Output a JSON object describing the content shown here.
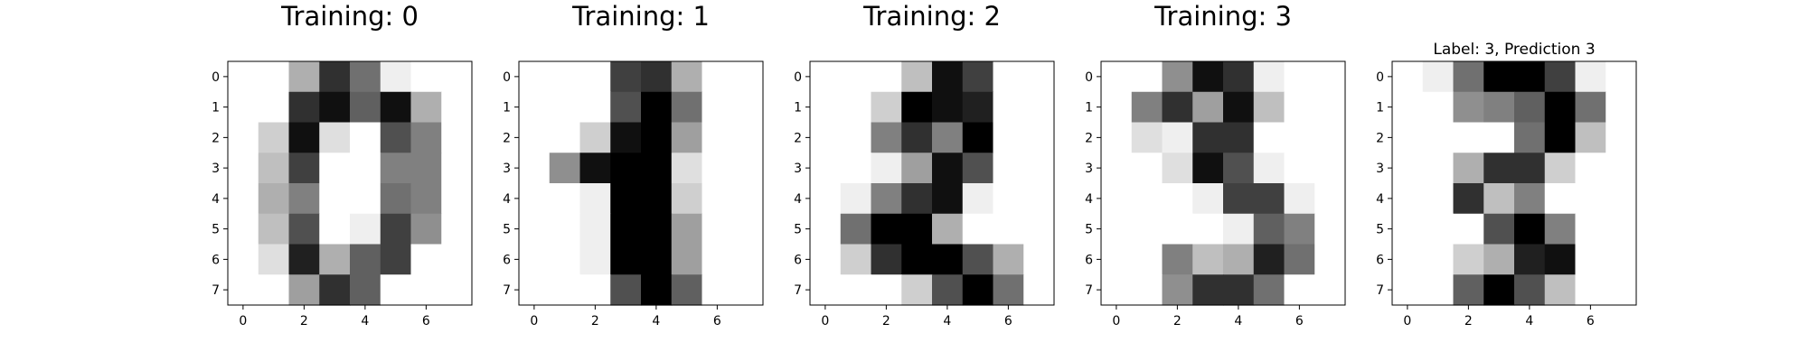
{
  "chart_data": [
    {
      "type": "heatmap",
      "title": "Training: 0",
      "colormap": "gray_r",
      "vmin": 0,
      "vmax": 16,
      "xticks": [
        "0",
        "2",
        "4",
        "6"
      ],
      "yticks": [
        "0",
        "1",
        "2",
        "3",
        "4",
        "5",
        "6",
        "7"
      ],
      "values": [
        [
          0,
          0,
          5,
          13,
          9,
          1,
          0,
          0
        ],
        [
          0,
          0,
          13,
          15,
          10,
          15,
          5,
          0
        ],
        [
          0,
          3,
          15,
          2,
          0,
          11,
          8,
          0
        ],
        [
          0,
          4,
          12,
          0,
          0,
          8,
          8,
          0
        ],
        [
          0,
          5,
          8,
          0,
          0,
          9,
          8,
          0
        ],
        [
          0,
          4,
          11,
          0,
          1,
          12,
          7,
          0
        ],
        [
          0,
          2,
          14,
          5,
          10,
          12,
          0,
          0
        ],
        [
          0,
          0,
          6,
          13,
          10,
          0,
          0,
          0
        ]
      ]
    },
    {
      "type": "heatmap",
      "title": "Training: 1",
      "colormap": "gray_r",
      "vmin": 0,
      "vmax": 16,
      "xticks": [
        "0",
        "2",
        "4",
        "6"
      ],
      "yticks": [
        "0",
        "1",
        "2",
        "3",
        "4",
        "5",
        "6",
        "7"
      ],
      "values": [
        [
          0,
          0,
          0,
          12,
          13,
          5,
          0,
          0
        ],
        [
          0,
          0,
          0,
          11,
          16,
          9,
          0,
          0
        ],
        [
          0,
          0,
          3,
          15,
          16,
          6,
          0,
          0
        ],
        [
          0,
          7,
          15,
          16,
          16,
          2,
          0,
          0
        ],
        [
          0,
          0,
          1,
          16,
          16,
          3,
          0,
          0
        ],
        [
          0,
          0,
          1,
          16,
          16,
          6,
          0,
          0
        ],
        [
          0,
          0,
          1,
          16,
          16,
          6,
          0,
          0
        ],
        [
          0,
          0,
          0,
          11,
          16,
          10,
          0,
          0
        ]
      ]
    },
    {
      "type": "heatmap",
      "title": "Training: 2",
      "colormap": "gray_r",
      "vmin": 0,
      "vmax": 16,
      "xticks": [
        "0",
        "2",
        "4",
        "6"
      ],
      "yticks": [
        "0",
        "1",
        "2",
        "3",
        "4",
        "5",
        "6",
        "7"
      ],
      "values": [
        [
          0,
          0,
          0,
          4,
          15,
          12,
          0,
          0
        ],
        [
          0,
          0,
          3,
          16,
          15,
          14,
          0,
          0
        ],
        [
          0,
          0,
          8,
          13,
          8,
          16,
          0,
          0
        ],
        [
          0,
          0,
          1,
          6,
          15,
          11,
          0,
          0
        ],
        [
          0,
          1,
          8,
          13,
          15,
          1,
          0,
          0
        ],
        [
          0,
          9,
          16,
          16,
          5,
          0,
          0,
          0
        ],
        [
          0,
          3,
          13,
          16,
          16,
          11,
          5,
          0
        ],
        [
          0,
          0,
          0,
          3,
          11,
          16,
          9,
          0
        ]
      ]
    },
    {
      "type": "heatmap",
      "title": "Training: 3",
      "colormap": "gray_r",
      "vmin": 0,
      "vmax": 16,
      "xticks": [
        "0",
        "2",
        "4",
        "6"
      ],
      "yticks": [
        "0",
        "1",
        "2",
        "3",
        "4",
        "5",
        "6",
        "7"
      ],
      "values": [
        [
          0,
          0,
          7,
          15,
          13,
          1,
          0,
          0
        ],
        [
          0,
          8,
          13,
          6,
          15,
          4,
          0,
          0
        ],
        [
          0,
          2,
          1,
          13,
          13,
          0,
          0,
          0
        ],
        [
          0,
          0,
          2,
          15,
          11,
          1,
          0,
          0
        ],
        [
          0,
          0,
          0,
          1,
          12,
          12,
          1,
          0
        ],
        [
          0,
          0,
          0,
          0,
          1,
          10,
          8,
          0
        ],
        [
          0,
          0,
          8,
          4,
          5,
          14,
          9,
          0
        ],
        [
          0,
          0,
          7,
          13,
          13,
          9,
          0,
          0
        ]
      ]
    },
    {
      "type": "heatmap",
      "title": "Label: 3, Prediction 3",
      "colormap": "gray_r",
      "vmin": 0,
      "vmax": 16,
      "xticks": [
        "0",
        "2",
        "4",
        "6"
      ],
      "yticks": [
        "0",
        "1",
        "2",
        "3",
        "4",
        "5",
        "6",
        "7"
      ],
      "values": [
        [
          0,
          1,
          9,
          16,
          16,
          12,
          1,
          0
        ],
        [
          0,
          0,
          7,
          8,
          10,
          16,
          9,
          0
        ],
        [
          0,
          0,
          0,
          0,
          9,
          16,
          4,
          0
        ],
        [
          0,
          0,
          5,
          13,
          13,
          3,
          0,
          0
        ],
        [
          0,
          0,
          13,
          4,
          8,
          0,
          0,
          0
        ],
        [
          0,
          0,
          0,
          11,
          16,
          8,
          0,
          0
        ],
        [
          0,
          0,
          3,
          5,
          14,
          15,
          0,
          0
        ],
        [
          0,
          0,
          10,
          16,
          11,
          4,
          0,
          0
        ]
      ]
    }
  ]
}
